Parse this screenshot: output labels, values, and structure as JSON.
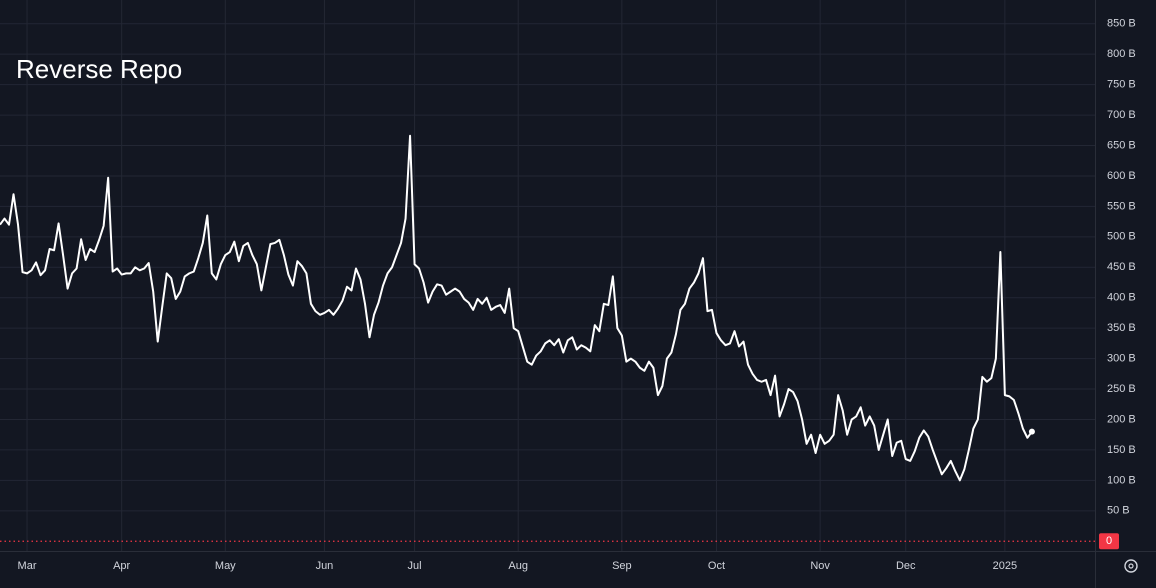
{
  "chart_data": {
    "type": "line",
    "title": "Reverse Repo",
    "color": "#ffffff",
    "grid": true,
    "values": [
      520,
      530,
      520,
      570,
      520,
      442,
      440,
      445,
      458,
      437,
      445,
      480,
      478,
      522,
      470,
      415,
      440,
      448,
      496,
      462,
      480,
      475,
      495,
      518,
      597,
      443,
      448,
      438,
      440,
      440,
      450,
      445,
      448,
      457,
      410,
      328,
      385,
      440,
      432,
      398,
      410,
      435,
      440,
      443,
      465,
      490,
      535,
      440,
      430,
      455,
      470,
      475,
      492,
      460,
      485,
      490,
      470,
      455,
      412,
      450,
      488,
      490,
      495,
      470,
      438,
      420,
      460,
      452,
      440,
      390,
      378,
      372,
      375,
      380,
      372,
      382,
      395,
      418,
      412,
      448,
      430,
      390,
      335,
      372,
      392,
      420,
      440,
      450,
      470,
      490,
      530,
      666,
      455,
      448,
      425,
      392,
      410,
      422,
      420,
      405,
      410,
      415,
      410,
      398,
      392,
      380,
      398,
      390,
      400,
      380,
      385,
      388,
      375,
      415,
      350,
      345,
      320,
      295,
      290,
      305,
      312,
      325,
      330,
      322,
      332,
      310,
      330,
      335,
      315,
      322,
      318,
      312,
      355,
      345,
      390,
      388,
      435,
      350,
      338,
      295,
      300,
      295,
      285,
      280,
      295,
      285,
      240,
      255,
      300,
      310,
      340,
      380,
      390,
      415,
      425,
      440,
      465,
      378,
      380,
      342,
      330,
      322,
      325,
      345,
      320,
      328,
      290,
      275,
      265,
      262,
      265,
      240,
      272,
      205,
      225,
      250,
      245,
      230,
      200,
      160,
      175,
      145,
      175,
      160,
      165,
      175,
      240,
      215,
      175,
      200,
      205,
      220,
      190,
      205,
      190,
      150,
      175,
      200,
      140,
      162,
      165,
      135,
      132,
      148,
      170,
      182,
      172,
      150,
      130,
      110,
      120,
      132,
      115,
      100,
      118,
      150,
      185,
      200,
      270,
      262,
      268,
      300,
      475,
      240,
      238,
      232,
      210,
      185,
      170,
      180
    ],
    "xlim": [
      0,
      243
    ],
    "xticks": [
      {
        "value": 6,
        "label": "Mar"
      },
      {
        "value": 27,
        "label": "Apr"
      },
      {
        "value": 50,
        "label": "May"
      },
      {
        "value": 72,
        "label": "Jun"
      },
      {
        "value": 92,
        "label": "Jul"
      },
      {
        "value": 115,
        "label": "Aug"
      },
      {
        "value": 138,
        "label": "Sep"
      },
      {
        "value": 159,
        "label": "Oct"
      },
      {
        "value": 182,
        "label": "Nov"
      },
      {
        "value": 201,
        "label": "Dec"
      },
      {
        "value": 223,
        "label": "2025"
      }
    ],
    "ylim": [
      -16,
      889
    ],
    "yticks": [
      {
        "value": 50,
        "label": "50 B"
      },
      {
        "value": 100,
        "label": "100 B"
      },
      {
        "value": 150,
        "label": "150 B"
      },
      {
        "value": 200,
        "label": "200 B"
      },
      {
        "value": 250,
        "label": "250 B"
      },
      {
        "value": 300,
        "label": "300 B"
      },
      {
        "value": 350,
        "label": "350 B"
      },
      {
        "value": 400,
        "label": "400 B"
      },
      {
        "value": 450,
        "label": "450 B"
      },
      {
        "value": 500,
        "label": "500 B"
      },
      {
        "value": 550,
        "label": "550 B"
      },
      {
        "value": 600,
        "label": "600 B"
      },
      {
        "value": 650,
        "label": "650 B"
      },
      {
        "value": 700,
        "label": "700 B"
      },
      {
        "value": 750,
        "label": "750 B"
      },
      {
        "value": 800,
        "label": "800 B"
      },
      {
        "value": 850,
        "label": "850 B"
      }
    ],
    "baseline": {
      "value": 0,
      "label": "0"
    }
  }
}
